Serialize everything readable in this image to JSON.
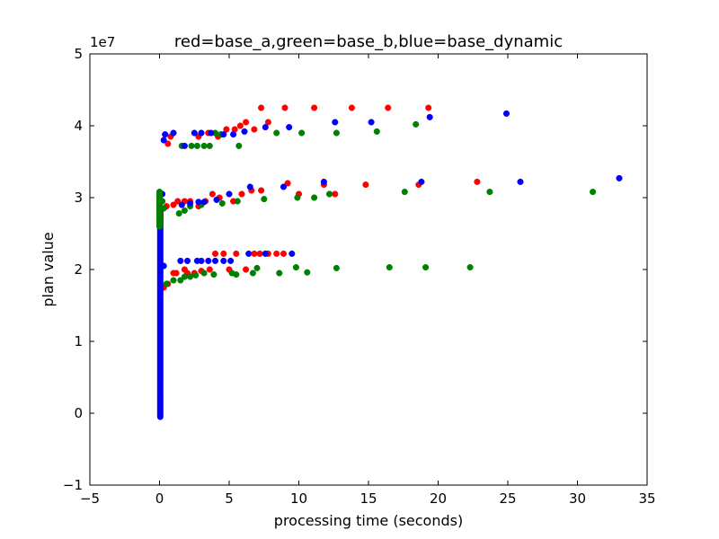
{
  "chart_data": {
    "type": "scatter",
    "title": "red=base_a,green=base_b,blue=base_dynamic",
    "xlabel": "processing time (seconds)",
    "ylabel": "plan value",
    "y_offset_label": "1e7",
    "xlim": [
      -5,
      35
    ],
    "ylim": [
      -1,
      5
    ],
    "x_ticks": [
      -5,
      0,
      5,
      10,
      15,
      20,
      25,
      30,
      35
    ],
    "y_ticks": [
      -1,
      0,
      1,
      2,
      3,
      4,
      5
    ],
    "x_tick_labels": [
      "−5",
      "0",
      "5",
      "10",
      "15",
      "20",
      "25",
      "30",
      "35"
    ],
    "y_tick_labels": [
      "−1",
      "0",
      "1",
      "2",
      "3",
      "4",
      "5"
    ],
    "grid": false,
    "series": [
      {
        "color": "#ff0000",
        "points": [
          [
            0.2,
            2.85
          ],
          [
            0.3,
            1.75
          ],
          [
            0.6,
            1.8
          ],
          [
            1.0,
            1.95
          ],
          [
            1.2,
            1.95
          ],
          [
            1.8,
            2.0
          ],
          [
            2.0,
            1.95
          ],
          [
            2.5,
            1.95
          ],
          [
            3.0,
            1.98
          ],
          [
            3.6,
            2.0
          ],
          [
            4.0,
            2.22
          ],
          [
            4.6,
            2.22
          ],
          [
            5.0,
            2.0
          ],
          [
            5.5,
            2.22
          ],
          [
            6.2,
            2.0
          ],
          [
            6.8,
            2.22
          ],
          [
            7.2,
            2.22
          ],
          [
            7.8,
            2.22
          ],
          [
            8.4,
            2.22
          ],
          [
            8.9,
            2.22
          ],
          [
            0.5,
            2.88
          ],
          [
            1.0,
            2.9
          ],
          [
            1.3,
            2.95
          ],
          [
            1.8,
            2.95
          ],
          [
            2.2,
            2.95
          ],
          [
            2.8,
            2.88
          ],
          [
            3.3,
            2.95
          ],
          [
            3.8,
            3.05
          ],
          [
            4.3,
            3.0
          ],
          [
            5.3,
            2.95
          ],
          [
            5.9,
            3.05
          ],
          [
            6.6,
            3.1
          ],
          [
            7.3,
            3.1
          ],
          [
            9.2,
            3.2
          ],
          [
            10.0,
            3.05
          ],
          [
            11.8,
            3.18
          ],
          [
            12.2,
            3.05
          ],
          [
            12.6,
            3.05
          ],
          [
            14.8,
            3.18
          ],
          [
            18.6,
            3.18
          ],
          [
            22.8,
            3.22
          ],
          [
            0.6,
            3.75
          ],
          [
            0.8,
            3.85
          ],
          [
            2.8,
            3.85
          ],
          [
            3.5,
            3.9
          ],
          [
            4.2,
            3.85
          ],
          [
            4.8,
            3.95
          ],
          [
            5.4,
            3.95
          ],
          [
            5.8,
            4.0
          ],
          [
            6.2,
            4.05
          ],
          [
            6.8,
            3.95
          ],
          [
            7.3,
            4.25
          ],
          [
            7.8,
            4.05
          ],
          [
            9.0,
            4.25
          ],
          [
            11.1,
            4.25
          ],
          [
            13.8,
            4.25
          ],
          [
            16.4,
            4.25
          ],
          [
            19.3,
            4.25
          ]
        ]
      },
      {
        "color": "#008000",
        "points": [
          [
            0.1,
            3.05
          ],
          [
            0.2,
            2.95
          ],
          [
            0.3,
            2.85
          ],
          [
            0.5,
            1.8
          ],
          [
            1.0,
            1.85
          ],
          [
            1.5,
            1.85
          ],
          [
            1.8,
            1.9
          ],
          [
            2.2,
            1.9
          ],
          [
            2.6,
            1.92
          ],
          [
            3.2,
            1.95
          ],
          [
            3.9,
            1.93
          ],
          [
            5.2,
            1.95
          ],
          [
            5.5,
            1.93
          ],
          [
            6.7,
            1.95
          ],
          [
            7.0,
            2.02
          ],
          [
            8.6,
            1.95
          ],
          [
            9.8,
            2.03
          ],
          [
            10.6,
            1.96
          ],
          [
            12.7,
            2.02
          ],
          [
            16.5,
            2.03
          ],
          [
            19.1,
            2.03
          ],
          [
            22.3,
            2.03
          ],
          [
            1.4,
            2.78
          ],
          [
            1.8,
            2.82
          ],
          [
            2.2,
            2.88
          ],
          [
            3.0,
            2.9
          ],
          [
            4.5,
            2.92
          ],
          [
            5.6,
            2.95
          ],
          [
            7.5,
            2.98
          ],
          [
            9.9,
            3.0
          ],
          [
            11.1,
            3.0
          ],
          [
            12.2,
            3.05
          ],
          [
            17.6,
            3.08
          ],
          [
            23.7,
            3.08
          ],
          [
            31.1,
            3.08
          ],
          [
            1.6,
            3.72
          ],
          [
            2.3,
            3.72
          ],
          [
            2.7,
            3.72
          ],
          [
            3.2,
            3.72
          ],
          [
            3.6,
            3.72
          ],
          [
            4.0,
            3.9
          ],
          [
            4.4,
            3.88
          ],
          [
            5.7,
            3.72
          ],
          [
            8.4,
            3.9
          ],
          [
            10.2,
            3.9
          ],
          [
            12.7,
            3.9
          ],
          [
            15.6,
            3.92
          ],
          [
            18.4,
            4.02
          ]
        ]
      },
      {
        "color": "#0000ff",
        "points": [
          [
            0.3,
            2.05
          ],
          [
            1.5,
            2.12
          ],
          [
            2.0,
            2.12
          ],
          [
            2.7,
            2.12
          ],
          [
            3.0,
            2.12
          ],
          [
            3.5,
            2.12
          ],
          [
            4.0,
            2.12
          ],
          [
            4.6,
            2.12
          ],
          [
            5.1,
            2.12
          ],
          [
            6.4,
            2.22
          ],
          [
            7.6,
            2.22
          ],
          [
            9.5,
            2.22
          ],
          [
            0.2,
            3.05
          ],
          [
            1.6,
            2.9
          ],
          [
            2.2,
            2.92
          ],
          [
            2.8,
            2.94
          ],
          [
            3.2,
            2.94
          ],
          [
            4.1,
            2.97
          ],
          [
            5.0,
            3.05
          ],
          [
            6.5,
            3.15
          ],
          [
            8.9,
            3.15
          ],
          [
            11.8,
            3.22
          ],
          [
            18.8,
            3.22
          ],
          [
            25.9,
            3.22
          ],
          [
            33.0,
            3.27
          ],
          [
            0.3,
            3.8
          ],
          [
            0.4,
            3.88
          ],
          [
            1.0,
            3.9
          ],
          [
            1.8,
            3.72
          ],
          [
            2.5,
            3.9
          ],
          [
            3.0,
            3.9
          ],
          [
            3.7,
            3.9
          ],
          [
            4.6,
            3.88
          ],
          [
            5.3,
            3.88
          ],
          [
            6.1,
            3.92
          ],
          [
            7.6,
            3.98
          ],
          [
            9.3,
            3.98
          ],
          [
            12.6,
            4.05
          ],
          [
            15.2,
            4.05
          ],
          [
            19.4,
            4.12
          ],
          [
            24.9,
            4.17
          ]
        ]
      }
    ]
  }
}
